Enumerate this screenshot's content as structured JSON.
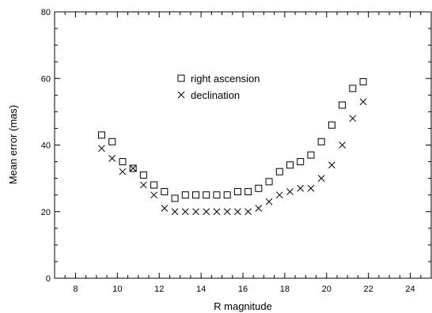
{
  "chart_data": {
    "type": "scatter",
    "xlabel": "R magnitude",
    "ylabel": "Mean error (mas)",
    "xlim": [
      7,
      25
    ],
    "ylim": [
      0,
      80
    ],
    "x_ticks": [
      "8",
      "10",
      "12",
      "14",
      "16",
      "18",
      "20",
      "22",
      "24"
    ],
    "y_ticks": [
      "0",
      "20",
      "40",
      "60",
      "80"
    ],
    "grid": false,
    "legend_placement": "top-center",
    "series": [
      {
        "name": "right ascension",
        "marker": "open-square",
        "x": [
          9.25,
          9.75,
          10.25,
          10.75,
          11.25,
          11.75,
          12.25,
          12.75,
          13.25,
          13.75,
          14.25,
          14.75,
          15.25,
          15.75,
          16.25,
          16.75,
          17.25,
          17.75,
          18.25,
          18.75,
          19.25,
          19.75,
          20.25,
          20.75,
          21.25,
          21.75
        ],
        "y": [
          43,
          41,
          35,
          33,
          31,
          28,
          26,
          24,
          25,
          25,
          25,
          25,
          25,
          26,
          26,
          27,
          29,
          32,
          34,
          35,
          37,
          41,
          46,
          52,
          57,
          59
        ]
      },
      {
        "name": "declination",
        "marker": "x",
        "x": [
          9.25,
          9.75,
          10.25,
          10.75,
          11.25,
          11.75,
          12.25,
          12.75,
          13.25,
          13.75,
          14.25,
          14.75,
          15.25,
          15.75,
          16.25,
          16.75,
          17.25,
          17.75,
          18.25,
          18.75,
          19.25,
          19.75,
          20.25,
          20.75,
          21.25,
          21.75
        ],
        "y": [
          39,
          36,
          32,
          33,
          28,
          25,
          21,
          20,
          20,
          20,
          20,
          20,
          20,
          20,
          20,
          21,
          23,
          25,
          26,
          27,
          27,
          30,
          34,
          40,
          48,
          53
        ]
      }
    ]
  }
}
